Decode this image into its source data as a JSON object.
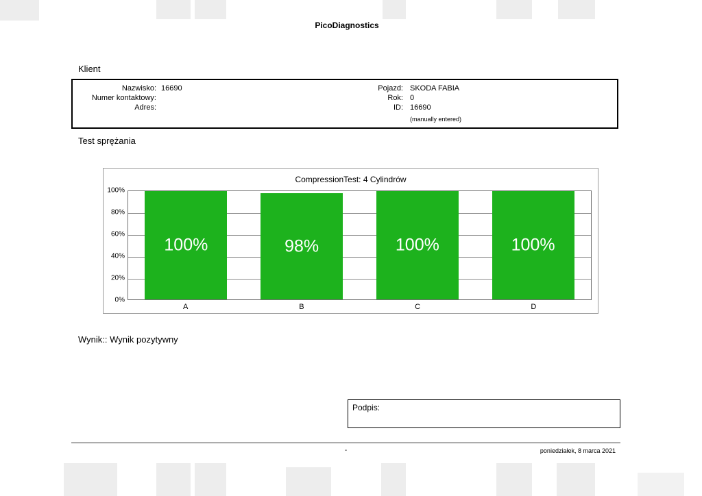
{
  "page": {
    "title": "PicoDiagnostics",
    "footer_center": "-",
    "footer_date": "poniedziałek, 8 marca 2021"
  },
  "client": {
    "section_label": "Klient",
    "left_rows": [
      {
        "label": "Nazwisko:",
        "value": "16690"
      },
      {
        "label": "Numer kontaktowy:",
        "value": ""
      },
      {
        "label": "Adres:",
        "value": ""
      }
    ],
    "right_rows": [
      {
        "label": "Pojazd:",
        "value": "SKODA FABIA"
      },
      {
        "label": "Rok:",
        "value": "0"
      },
      {
        "label": "ID:",
        "value": "16690"
      }
    ],
    "note": "(manually entered)"
  },
  "test": {
    "section_label": "Test sprężania",
    "result": "Wynik:: Wynik pozytywny"
  },
  "signature_label": "Podpis:",
  "chart_data": {
    "type": "bar",
    "title": "CompressionTest: 4 Cylindrów",
    "categories": [
      "A",
      "B",
      "C",
      "D"
    ],
    "values": [
      100,
      98,
      100,
      100
    ],
    "bar_labels": [
      "100%",
      "98%",
      "100%",
      "100%"
    ],
    "y_ticks": [
      "100%",
      "80%",
      "60%",
      "40%",
      "20%",
      "0%"
    ],
    "ylim": [
      0,
      100
    ],
    "grid": true,
    "legend": false,
    "bar_color": "#1db21d",
    "bar_label_color": "#ffffff"
  }
}
